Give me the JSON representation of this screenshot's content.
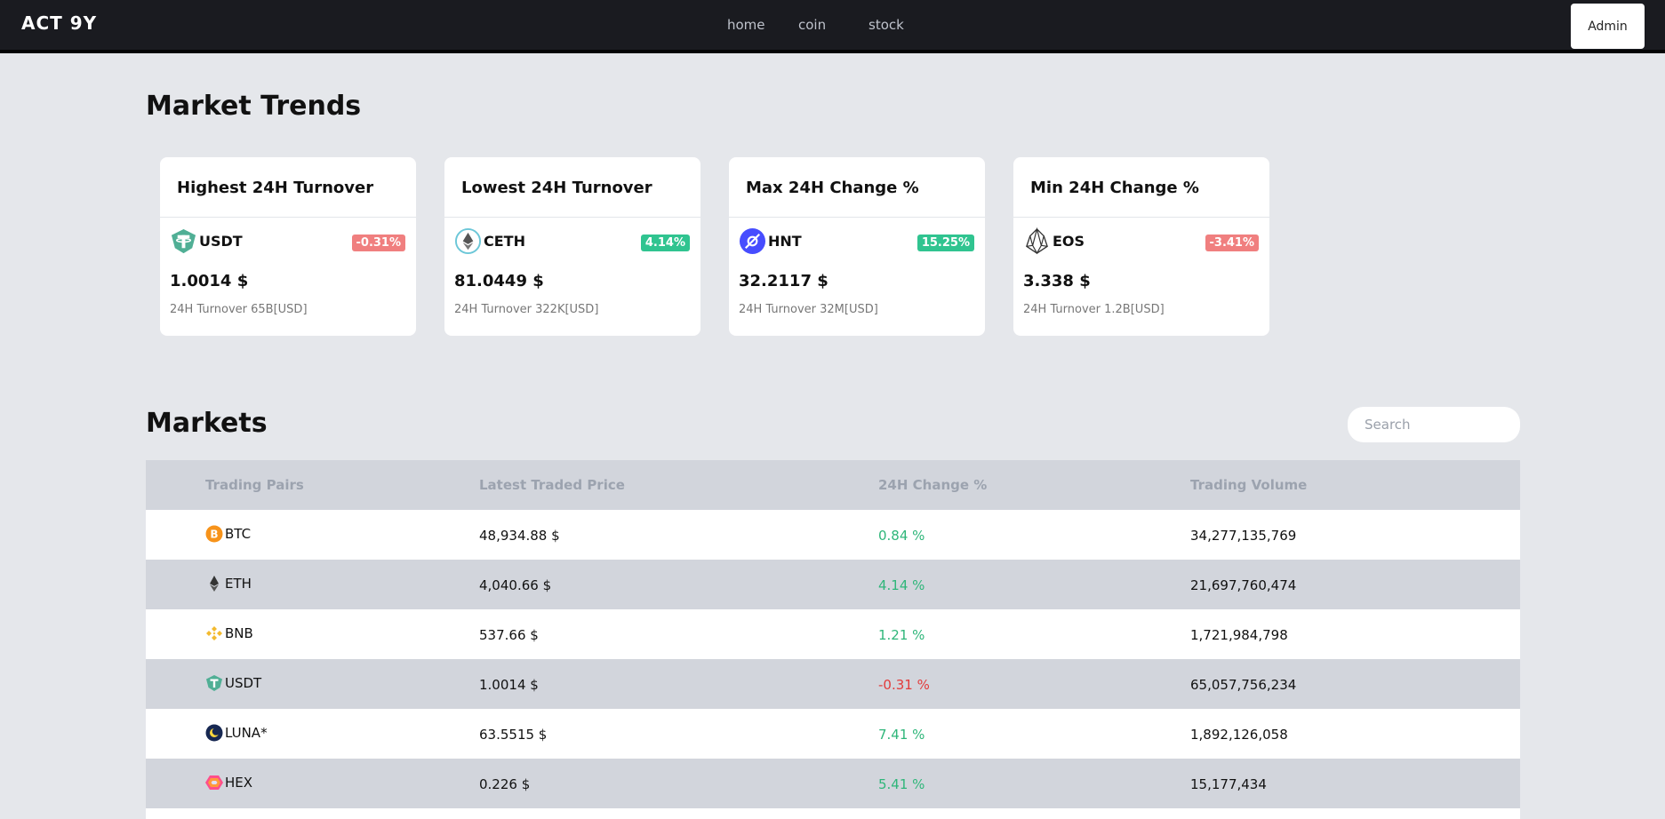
{
  "nav": {
    "logo": "ACT 9Y",
    "links": [
      "home",
      "coin",
      "stock"
    ],
    "admin_label": "Admin"
  },
  "trends": {
    "title": "Market Trends",
    "cards": [
      {
        "heading": "Highest 24H Turnover",
        "symbol": "USDT",
        "icon": "tether-icon",
        "change": "-0.31%",
        "direction": "down",
        "price": "1.0014 $",
        "turnover": "24H Turnover 65B[USD]"
      },
      {
        "heading": "Lowest 24H Turnover",
        "symbol": "CETH",
        "icon": "ceth-icon",
        "change": "4.14%",
        "direction": "up",
        "price": "81.0449 $",
        "turnover": "24H Turnover 322K[USD]"
      },
      {
        "heading": "Max 24H Change %",
        "symbol": "HNT",
        "icon": "helium-icon",
        "change": "15.25%",
        "direction": "up",
        "price": "32.2117 $",
        "turnover": "24H Turnover 32M[USD]"
      },
      {
        "heading": "Min 24H Change %",
        "symbol": "EOS",
        "icon": "eos-icon",
        "change": "-3.41%",
        "direction": "down",
        "price": "3.338 $",
        "turnover": "24H Turnover 1.2B[USD]"
      }
    ]
  },
  "markets": {
    "title": "Markets",
    "search_placeholder": "Search",
    "columns": [
      "Trading Pairs",
      "Latest Traded Price",
      "24H Change %",
      "Trading Volume"
    ],
    "rows": [
      {
        "pair": "BTC",
        "icon": "bitcoin-icon",
        "price": "48,934.88 $",
        "change": "0.84 %",
        "direction": "up",
        "volume": "34,277,135,769"
      },
      {
        "pair": "ETH",
        "icon": "ethereum-icon",
        "price": "4,040.66 $",
        "change": "4.14 %",
        "direction": "up",
        "volume": "21,697,760,474"
      },
      {
        "pair": "BNB",
        "icon": "binance-icon",
        "price": "537.66 $",
        "change": "1.21 %",
        "direction": "up",
        "volume": "1,721,984,798"
      },
      {
        "pair": "USDT",
        "icon": "tether-icon",
        "price": "1.0014 $",
        "change": "-0.31 %",
        "direction": "down",
        "volume": "65,057,756,234"
      },
      {
        "pair": "LUNA*",
        "icon": "terra-icon",
        "price": "63.5515 $",
        "change": "7.41 %",
        "direction": "up",
        "volume": "1,892,126,058"
      },
      {
        "pair": "HEX",
        "icon": "hex-icon",
        "price": "0.226 $",
        "change": "5.41 %",
        "direction": "up",
        "volume": "15,177,434"
      }
    ]
  },
  "colors": {
    "navbar": "#1a1b20",
    "positive": "#2fb67a",
    "negative": "#e23b3b",
    "badge_positive": "#30c490",
    "badge_negative": "#f07f7f"
  }
}
